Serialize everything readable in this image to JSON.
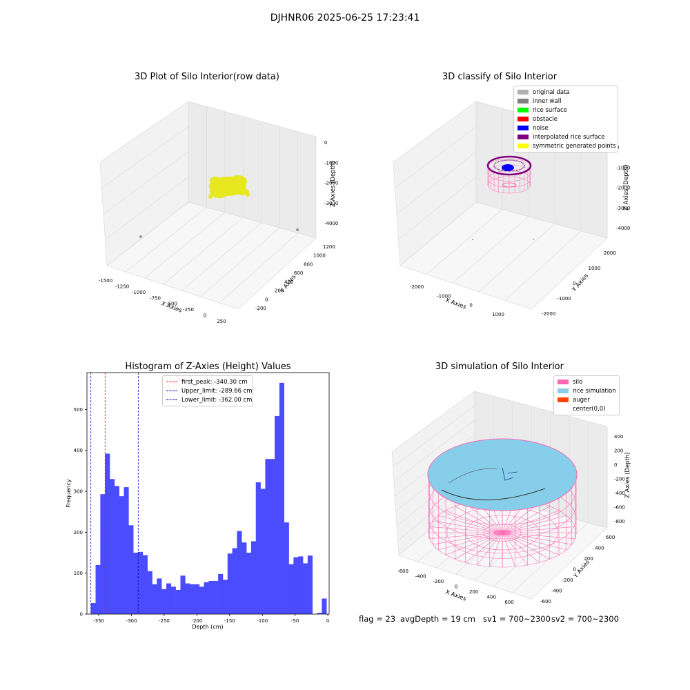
{
  "suptitle": "DJHNR06 2025-06-25 17:23:41",
  "colors": {
    "hist_bar": "#4b4bff",
    "peak_line": "#ff0000",
    "limit_line": "#0000cc",
    "raw_points": "#e8e820",
    "silo_wire": "#ff69b4",
    "rice_surface": "#87ceeb"
  },
  "panel_raw": {
    "title": "3D Plot of Silo Interior(row data)",
    "xlabel": "X Axies",
    "ylabel": "Y Axies",
    "zlabel": "Z Axies (Depth)",
    "x_ticks": [
      "-1500",
      "-1250",
      "-1000",
      "-750",
      "-500",
      "-250",
      "0",
      "250"
    ],
    "y_ticks": [
      "-200",
      "0",
      "200",
      "400",
      "600",
      "800",
      "1000",
      "1200"
    ],
    "z_ticks": [
      "0",
      "-1000",
      "-2000",
      "-3000",
      "-4000"
    ]
  },
  "panel_classify": {
    "title": "3D classify of Silo Interior",
    "xlabel": "X Axies",
    "ylabel": "Y Axies",
    "zlabel": "Z Axies (Depth)",
    "x_ticks": [
      "-2000",
      "-1000",
      "0",
      "1000"
    ],
    "y_ticks": [
      "-2000",
      "-1000",
      "0",
      "1000",
      "2000"
    ],
    "z_ticks": [
      "0",
      "-1000",
      "-2000",
      "-3000",
      "-4000"
    ],
    "legend": [
      {
        "label": "original data",
        "color": "#b0b0b0"
      },
      {
        "label": "inner wall",
        "color": "#808080"
      },
      {
        "label": "rice surface",
        "color": "#00ff00"
      },
      {
        "label": "obstacle",
        "color": "#ff0000"
      },
      {
        "label": "noise",
        "color": "#0000ff"
      },
      {
        "label": "interpolated rice surface",
        "color": "#800080"
      },
      {
        "label": "symmetric generated points",
        "color": "#ffff00"
      }
    ]
  },
  "panel_simulation": {
    "title": "3D simulation of Silo Interior",
    "xlabel": "X Axies",
    "ylabel": "Y Axies",
    "zlabel": "Z Axies (Depth)",
    "x_ticks": [
      "-600",
      "-400",
      "-200",
      "0",
      "200",
      "400",
      "600"
    ],
    "y_ticks": [
      "-600",
      "-400",
      "-200",
      "0",
      "200",
      "400",
      "600"
    ],
    "z_ticks": [
      "400",
      "200",
      "0",
      "-200",
      "-400",
      "-600",
      "-800"
    ],
    "legend": [
      {
        "label": "silo",
        "color": "#ff69b4"
      },
      {
        "label": "rice simulation",
        "color": "#87ceeb"
      },
      {
        "label": "auger",
        "color": "#ff4500"
      },
      {
        "label": "center(0,0)",
        "color": "#ffffff"
      }
    ]
  },
  "footer": {
    "flag": "flag = 23",
    "avg_depth": "avgDepth = 19 cm",
    "sv1": "sv1 = 700~2300",
    "sv2": "sv2 = 700~2300"
  },
  "chart_data": {
    "type": "bar",
    "title": "Histogram of Z-Axies (Height) Values",
    "xlabel": "Depth (cm)",
    "ylabel": "Frequency",
    "xlim": [
      -368,
      2
    ],
    "ylim": [
      0,
      590
    ],
    "x_ticks": [
      -350,
      -300,
      -250,
      -200,
      -150,
      -100,
      -50,
      0
    ],
    "y_ticks": [
      0,
      100,
      200,
      300,
      400,
      500
    ],
    "bin_start": -362,
    "bin_width": 7.2,
    "values": [
      27,
      120,
      293,
      392,
      330,
      313,
      288,
      310,
      217,
      150,
      152,
      144,
      105,
      73,
      87,
      61,
      75,
      67,
      59,
      94,
      75,
      73,
      73,
      67,
      78,
      81,
      81,
      98,
      84,
      148,
      161,
      203,
      175,
      150,
      178,
      322,
      306,
      379,
      379,
      484,
      565,
      224,
      122,
      139,
      141,
      124,
      143,
      0,
      3,
      38
    ],
    "lines": [
      {
        "label": "first_peak: -340.30 cm",
        "x": -340.3,
        "color": "#ff0000"
      },
      {
        "label": "Upper_limit: -289.66 cm",
        "x": -289.66,
        "color": "#0000cc"
      },
      {
        "label": "Lower_limit: -362.00 cm",
        "x": -362.0,
        "color": "#0000cc"
      }
    ]
  }
}
